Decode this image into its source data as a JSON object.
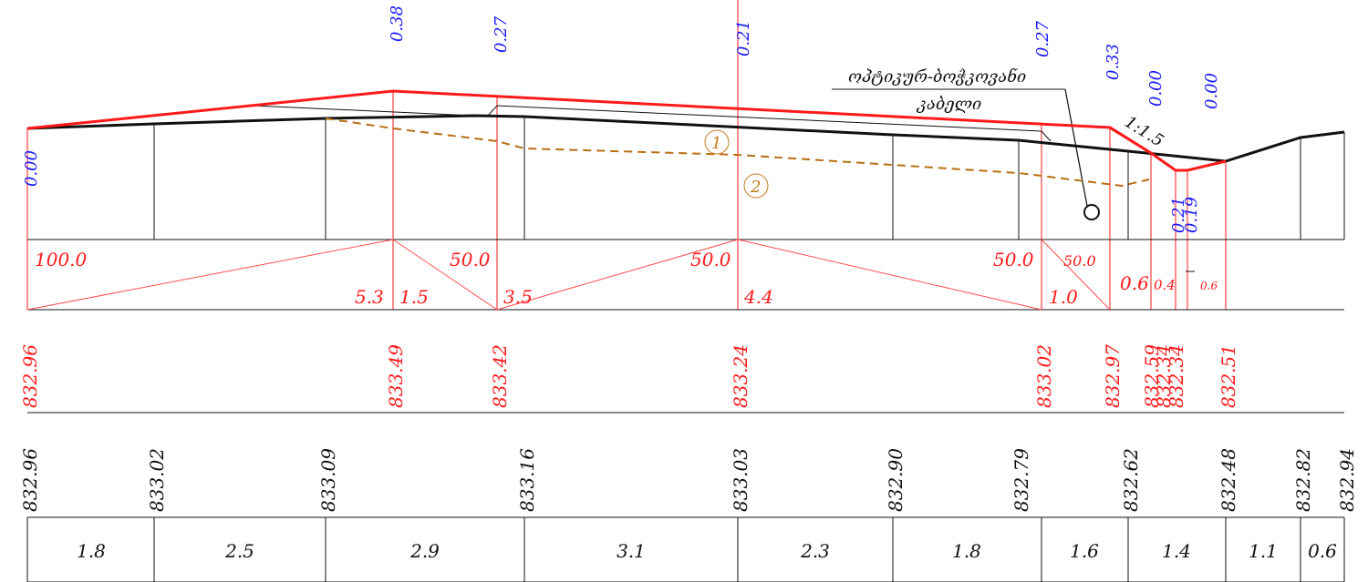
{
  "colors": {
    "design_line": "#ff1a1a",
    "ground_line": "#111111",
    "slope_values": "#1a1aff",
    "layer_line": "#b86e14",
    "thin_red": "#ff4d4d"
  },
  "slopes_top": [
    "0.38",
    "0.27",
    "0.21",
    "0.27",
    "0.33",
    "0.00",
    "0.00"
  ],
  "slope_left": "0.00",
  "slopes_ditch": [
    "0.21",
    "0.19"
  ],
  "cable_label": {
    "line1": "ოპტიკურ-ბოჭკოვანი",
    "line2": "კაბელი"
  },
  "slope_ratio": "1:1.5",
  "layer_markers": [
    "1",
    "2"
  ],
  "band1": {
    "top_values": [
      "100.0",
      "50.0",
      "50.0",
      "50.0",
      "50.0"
    ],
    "bottom_values": [
      "5.3",
      "1.5",
      "3.5",
      "4.4",
      "1.0"
    ],
    "small_values": [
      "0.6",
      "0.4",
      "0.6"
    ]
  },
  "design_elevations": [
    "832.96",
    "833.49",
    "833.42",
    "833.24",
    "833.02",
    "832.97",
    "832.59",
    "832.34",
    "832.34",
    "832.51"
  ],
  "ground_elevations": [
    "832.96",
    "833.02",
    "833.09",
    "833.16",
    "833.03",
    "832.90",
    "832.79",
    "832.62",
    "832.48",
    "832.82",
    "832.94"
  ],
  "distances": [
    "1.8",
    "2.5",
    "2.9",
    "3.1",
    "2.3",
    "1.8",
    "1.6",
    "1.4",
    "1.1",
    "0.6"
  ]
}
